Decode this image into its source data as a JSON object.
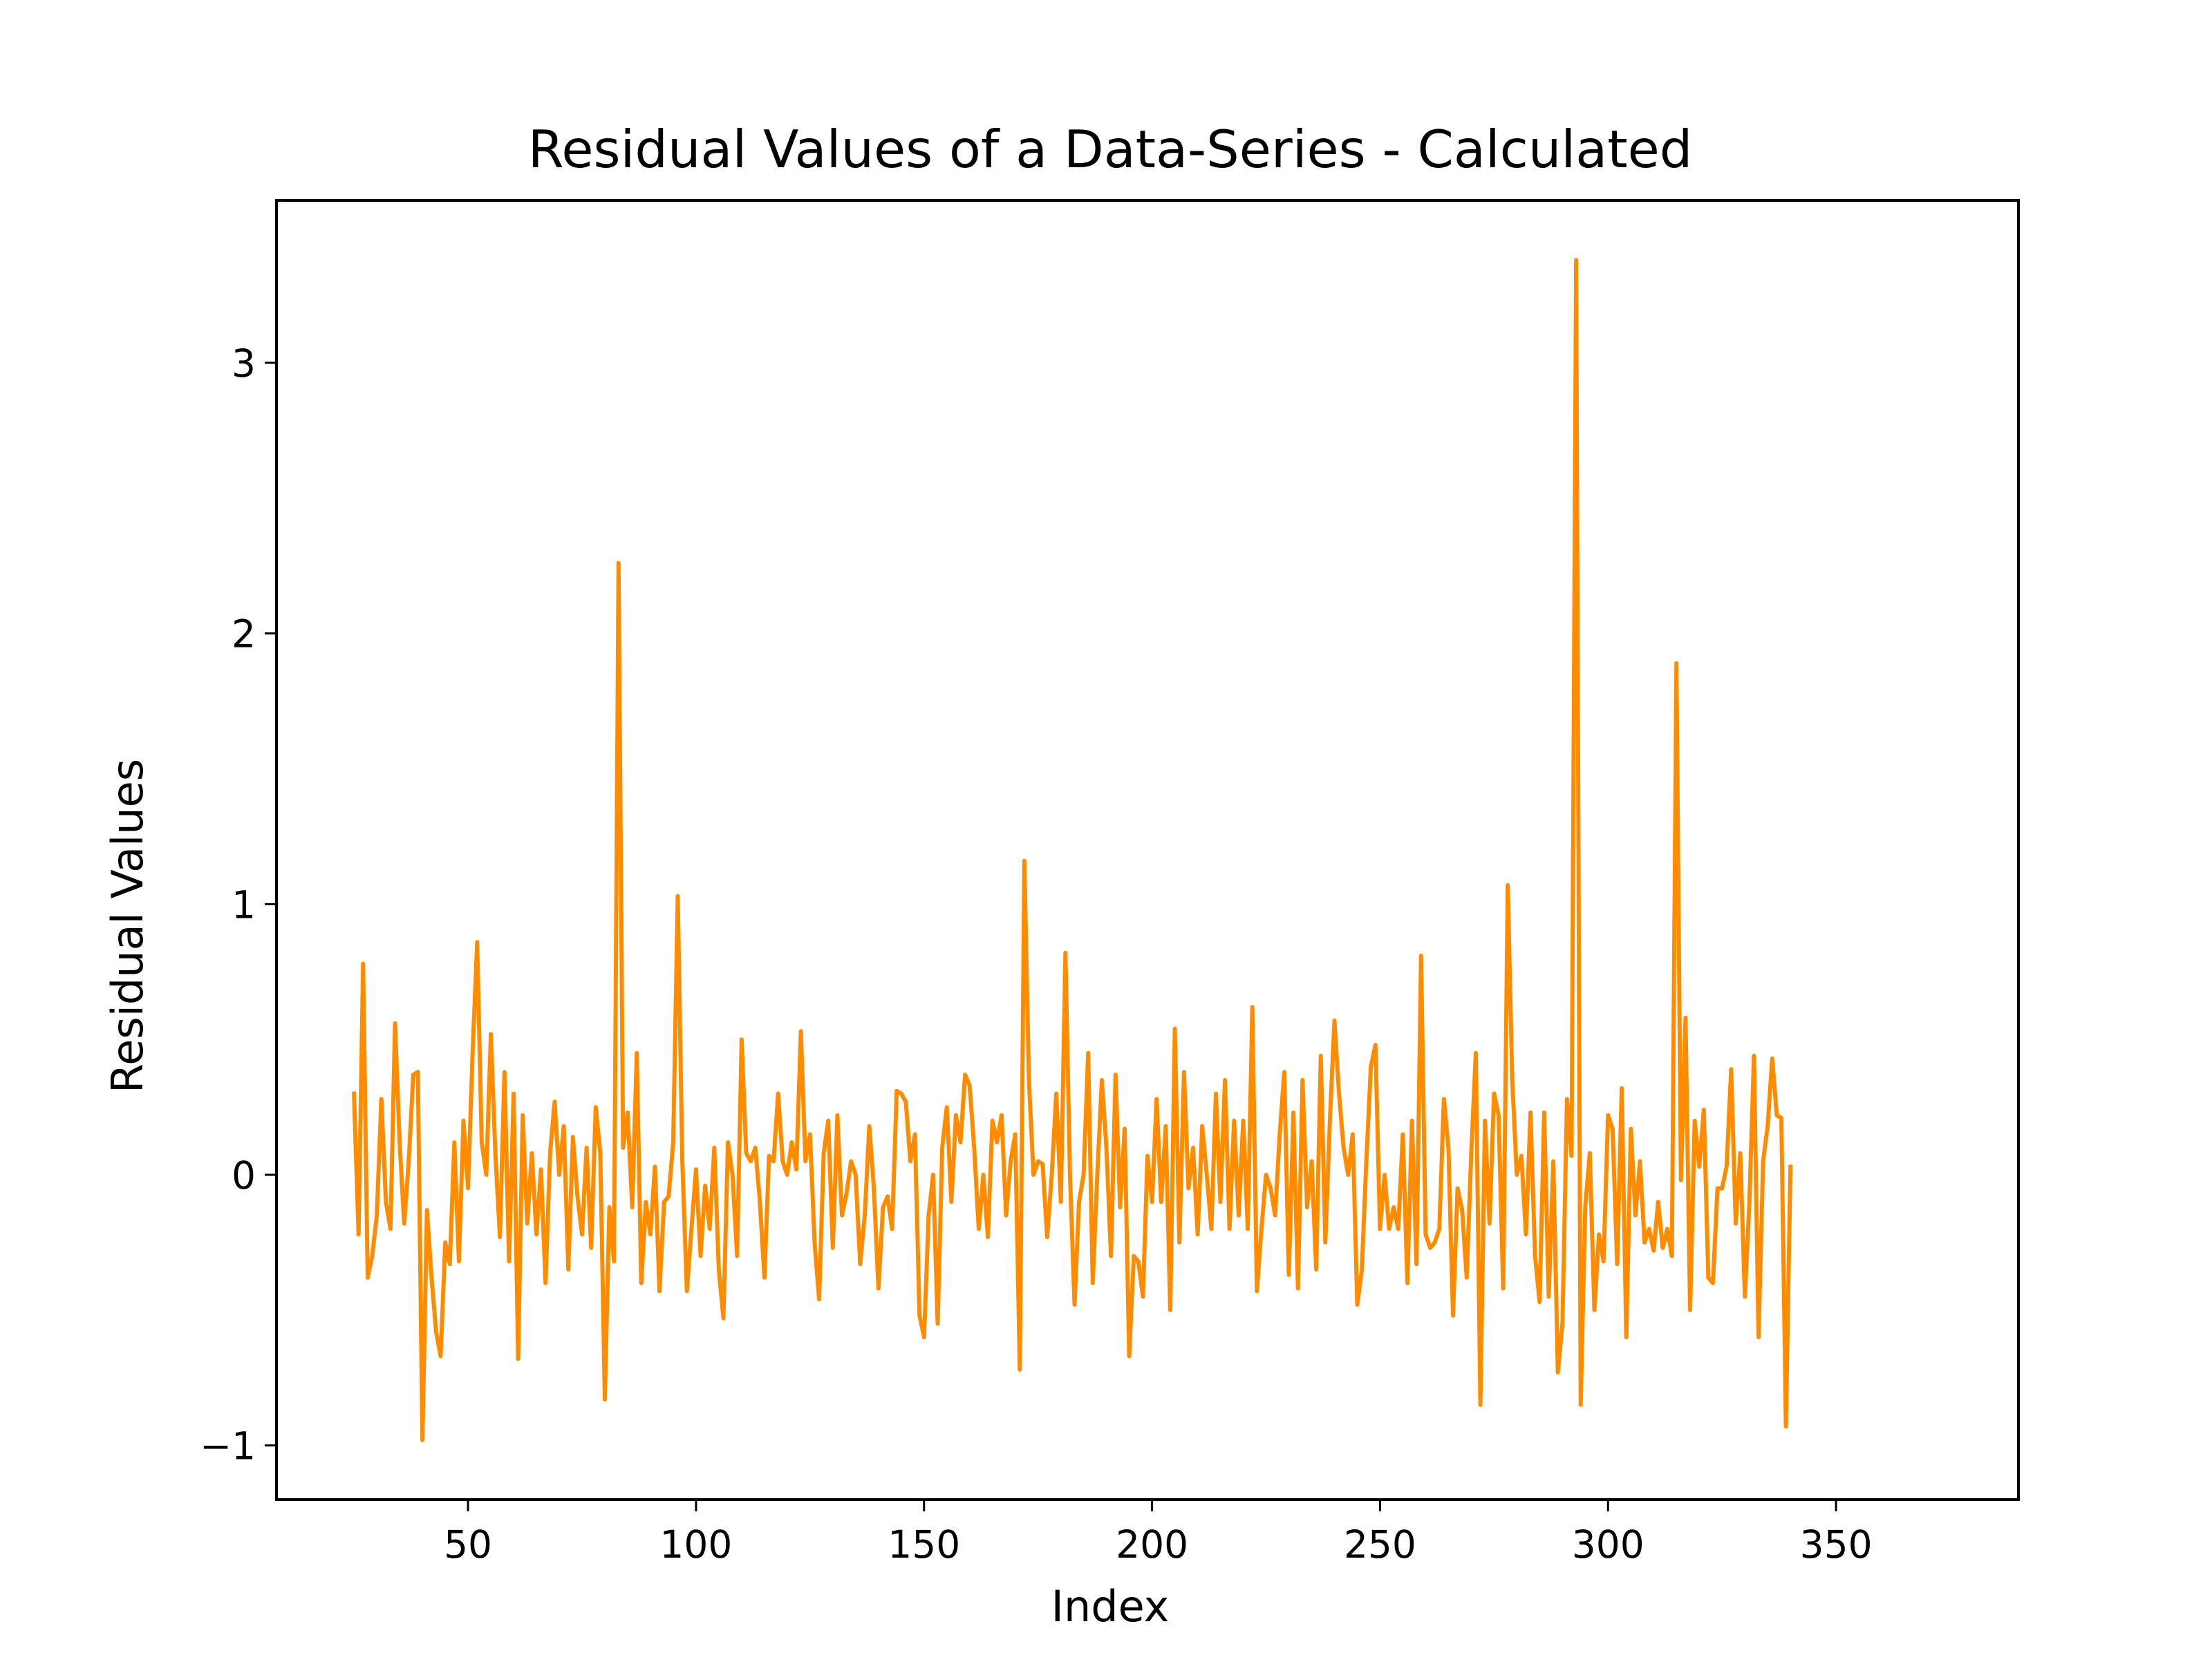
{
  "chart_data": {
    "type": "line",
    "title": "Residual Values of a Data-Series - Calculated",
    "xlabel": "Index",
    "ylabel": "Residual Values",
    "xlim": [
      8,
      390
    ],
    "ylim": [
      -1.2,
      3.6
    ],
    "xticks": [
      50,
      100,
      150,
      200,
      250,
      300,
      350
    ],
    "xtick_labels": [
      "50",
      "100",
      "150",
      "200",
      "250",
      "300",
      "350"
    ],
    "yticks": [
      -1,
      0,
      1,
      2,
      3
    ],
    "ytick_labels": [
      "−1",
      "0",
      "1",
      "2",
      "3"
    ],
    "grid": false,
    "series": [
      {
        "name": "Residuals",
        "color": "#ff8c00",
        "x_start": 25,
        "values": [
          0.3,
          -0.22,
          0.78,
          -0.38,
          -0.3,
          -0.15,
          0.28,
          -0.1,
          -0.2,
          0.56,
          0.12,
          -0.18,
          0.05,
          0.37,
          0.38,
          -0.98,
          -0.13,
          -0.38,
          -0.58,
          -0.67,
          -0.25,
          -0.33,
          0.12,
          -0.32,
          0.2,
          -0.05,
          0.45,
          0.86,
          0.12,
          0.0,
          0.52,
          0.08,
          -0.23,
          0.38,
          -0.32,
          0.3,
          -0.68,
          0.22,
          -0.18,
          0.08,
          -0.22,
          0.02,
          -0.4,
          0.08,
          0.27,
          0.0,
          0.18,
          -0.35,
          0.14,
          -0.08,
          -0.22,
          0.1,
          -0.27,
          0.25,
          0.08,
          -0.83,
          -0.12,
          -0.32,
          2.26,
          0.1,
          0.23,
          -0.12,
          0.45,
          -0.4,
          -0.1,
          -0.22,
          0.03,
          -0.43,
          -0.1,
          -0.08,
          0.12,
          1.03,
          0.05,
          -0.43,
          -0.2,
          0.02,
          -0.3,
          -0.04,
          -0.2,
          0.1,
          -0.35,
          -0.53,
          0.12,
          0.0,
          -0.3,
          0.5,
          0.08,
          0.05,
          0.1,
          -0.1,
          -0.38,
          0.07,
          0.05,
          0.3,
          0.05,
          0.0,
          0.12,
          0.02,
          0.53,
          0.05,
          0.15,
          -0.25,
          -0.46,
          0.08,
          0.2,
          -0.27,
          0.22,
          -0.15,
          -0.07,
          0.05,
          0.0,
          -0.33,
          -0.15,
          0.18,
          -0.05,
          -0.42,
          -0.12,
          -0.08,
          -0.2,
          0.31,
          0.3,
          0.27,
          0.05,
          0.15,
          -0.52,
          -0.6,
          -0.15,
          0.0,
          -0.55,
          0.1,
          0.25,
          -0.1,
          0.22,
          0.12,
          0.37,
          0.33,
          0.1,
          -0.2,
          0.0,
          -0.23,
          0.2,
          0.12,
          0.22,
          -0.15,
          0.05,
          0.15,
          -0.72,
          1.16,
          0.35,
          0.0,
          0.05,
          0.04,
          -0.23,
          0.0,
          0.3,
          -0.1,
          0.82,
          0.0,
          -0.48,
          -0.1,
          0.0,
          0.45,
          -0.4,
          0.0,
          0.35,
          0.1,
          -0.3,
          0.37,
          -0.12,
          0.17,
          -0.67,
          -0.3,
          -0.32,
          -0.45,
          0.07,
          -0.1,
          0.28,
          -0.1,
          0.18,
          -0.5,
          0.54,
          -0.25,
          0.38,
          -0.05,
          0.1,
          -0.22,
          0.18,
          0.0,
          -0.2,
          0.3,
          -0.1,
          0.35,
          -0.2,
          0.2,
          -0.15,
          0.2,
          -0.2,
          0.62,
          -0.43,
          -0.2,
          0.0,
          -0.05,
          -0.15,
          0.15,
          0.38,
          -0.37,
          0.23,
          -0.42,
          0.35,
          -0.12,
          0.05,
          -0.35,
          0.44,
          -0.25,
          0.2,
          0.57,
          0.3,
          0.1,
          0.0,
          0.15,
          -0.48,
          -0.35,
          0.05,
          0.4,
          0.48,
          -0.2,
          0.0,
          -0.2,
          -0.12,
          -0.2,
          0.15,
          -0.4,
          0.2,
          -0.33,
          0.81,
          -0.22,
          -0.27,
          -0.25,
          -0.2,
          0.28,
          0.1,
          -0.52,
          -0.05,
          -0.13,
          -0.38,
          0.08,
          0.45,
          -0.85,
          0.2,
          -0.18,
          0.3,
          0.22,
          -0.42,
          1.07,
          0.35,
          0.0,
          0.07,
          -0.22,
          0.23,
          -0.3,
          -0.47,
          0.23,
          -0.45,
          0.05,
          -0.73,
          -0.55,
          0.28,
          0.07,
          3.38,
          -0.85,
          -0.12,
          0.08,
          -0.5,
          -0.22,
          -0.32,
          0.22,
          0.17,
          -0.33,
          0.32,
          -0.6,
          0.17,
          -0.15,
          0.05,
          -0.25,
          -0.2,
          -0.28,
          -0.1,
          -0.27,
          -0.2,
          -0.3,
          1.89,
          -0.02,
          0.58,
          -0.5,
          0.2,
          0.03,
          0.24,
          -0.38,
          -0.4,
          -0.05,
          -0.05,
          0.03,
          0.39,
          -0.18,
          0.08,
          -0.45,
          -0.1,
          0.44,
          -0.6,
          0.05,
          0.18,
          0.43,
          0.22,
          0.21,
          -0.93,
          0.03
        ]
      }
    ]
  }
}
